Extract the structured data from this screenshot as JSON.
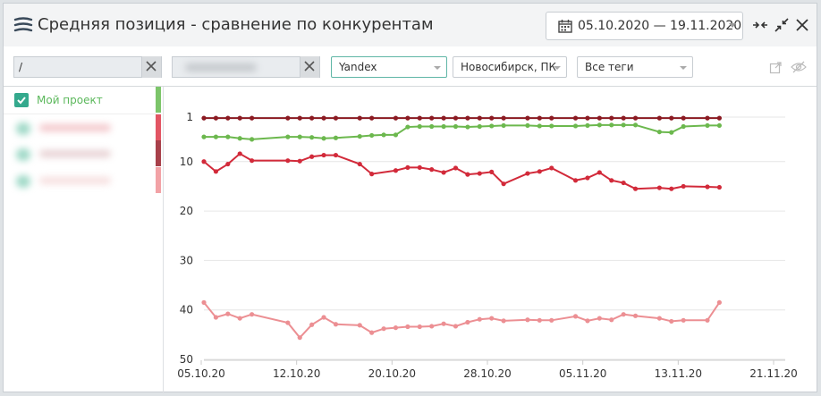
{
  "header": {
    "title": "Средняя позиция - сравнение по конкурентам",
    "date_range": "05.10.2020 — 19.11.2020"
  },
  "filters": {
    "url_value": "/",
    "domain_value": "",
    "engine": "Yandex",
    "region": "Новосибирск, ПК",
    "tags": "Все теги"
  },
  "legend": {
    "items": [
      {
        "label": "Мой проект",
        "checked": true,
        "color": "#7cc56a"
      },
      {
        "label": "",
        "color": "#e25563"
      },
      {
        "label": "",
        "color": "#a8404a"
      },
      {
        "label": "",
        "color": "#f2a2a6"
      }
    ]
  },
  "chart_data": {
    "type": "line",
    "x_ticks": [
      "05.10.20",
      "12.10.20",
      "20.10.20",
      "28.10.20",
      "05.11.20",
      "13.11.20",
      "21.11.20"
    ],
    "y_ticks": [
      1,
      10,
      20,
      30,
      40,
      50
    ],
    "ylim": [
      1,
      50
    ],
    "y_inverted": true,
    "x_start": "05.10.2020",
    "x_end": "21.11.2020",
    "series": [
      {
        "color": "#8b1a22",
        "days": [
          0,
          1,
          2,
          3,
          4,
          7,
          8,
          9,
          10,
          11,
          13,
          14,
          16,
          17,
          18,
          19,
          20,
          21,
          22,
          23,
          24,
          25,
          27,
          28,
          29,
          31,
          32,
          33,
          34,
          35,
          36,
          38,
          39,
          40,
          42,
          43
        ],
        "values": [
          1.2,
          1.2,
          1.2,
          1.2,
          1.2,
          1.2,
          1.2,
          1.2,
          1.2,
          1.2,
          1.2,
          1.2,
          1.2,
          1.2,
          1.2,
          1.2,
          1.2,
          1.2,
          1.2,
          1.2,
          1.2,
          1.2,
          1.2,
          1.2,
          1.2,
          1.2,
          1.2,
          1.2,
          1.2,
          1.2,
          1.2,
          1.2,
          1.2,
          1.2,
          1.2,
          1.2
        ]
      },
      {
        "color": "#6cb84e",
        "days": [
          0,
          1,
          2,
          3,
          4,
          7,
          8,
          9,
          10,
          11,
          13,
          14,
          15,
          16,
          17,
          18,
          19,
          20,
          21,
          22,
          23,
          24,
          25,
          27,
          28,
          29,
          31,
          32,
          33,
          34,
          35,
          36,
          38,
          39,
          40,
          42,
          43
        ],
        "values": [
          5.0,
          5.0,
          5.0,
          5.3,
          5.5,
          5.0,
          5.0,
          5.1,
          5.3,
          5.2,
          4.9,
          4.7,
          4.6,
          4.6,
          3.0,
          2.9,
          2.9,
          2.9,
          2.9,
          3.0,
          2.9,
          2.8,
          2.7,
          2.7,
          2.8,
          2.8,
          2.8,
          2.7,
          2.6,
          2.6,
          2.6,
          2.6,
          4.0,
          4.1,
          2.9,
          2.7,
          2.7
        ]
      },
      {
        "color": "#d22a3a",
        "days": [
          0,
          1,
          2,
          3,
          4,
          7,
          8,
          9,
          10,
          11,
          13,
          14,
          16,
          17,
          18,
          19,
          20,
          21,
          22,
          23,
          24,
          25,
          27,
          28,
          29,
          31,
          32,
          33,
          34,
          35,
          36,
          38,
          39,
          40,
          42,
          43
        ],
        "values": [
          10.0,
          12.0,
          10.5,
          8.4,
          9.8,
          9.8,
          9.9,
          9.0,
          8.7,
          8.7,
          10.5,
          12.5,
          11.8,
          11.2,
          11.2,
          11.6,
          12.2,
          11.3,
          12.6,
          12.4,
          12.1,
          14.5,
          12.4,
          12.0,
          11.3,
          13.8,
          13.3,
          12.2,
          13.8,
          14.3,
          15.5,
          15.3,
          15.5,
          15.0,
          15.1,
          15.2
        ]
      },
      {
        "color": "#ec8f93",
        "days": [
          0,
          1,
          2,
          3,
          4,
          7,
          8,
          9,
          10,
          11,
          13,
          14,
          15,
          16,
          17,
          18,
          19,
          20,
          21,
          22,
          23,
          24,
          25,
          27,
          28,
          29,
          31,
          32,
          33,
          34,
          35,
          36,
          38,
          39,
          40,
          42,
          43
        ],
        "values": [
          38.5,
          41.5,
          40.8,
          41.7,
          40.9,
          42.6,
          45.6,
          43.0,
          41.5,
          42.9,
          43.1,
          44.6,
          43.8,
          43.6,
          43.4,
          43.4,
          43.3,
          42.8,
          43.3,
          42.5,
          41.9,
          41.7,
          42.2,
          42.0,
          42.1,
          42.1,
          41.3,
          42.2,
          41.7,
          42.0,
          40.9,
          41.2,
          41.7,
          42.3,
          42.1,
          42.1,
          38.5
        ]
      }
    ]
  }
}
